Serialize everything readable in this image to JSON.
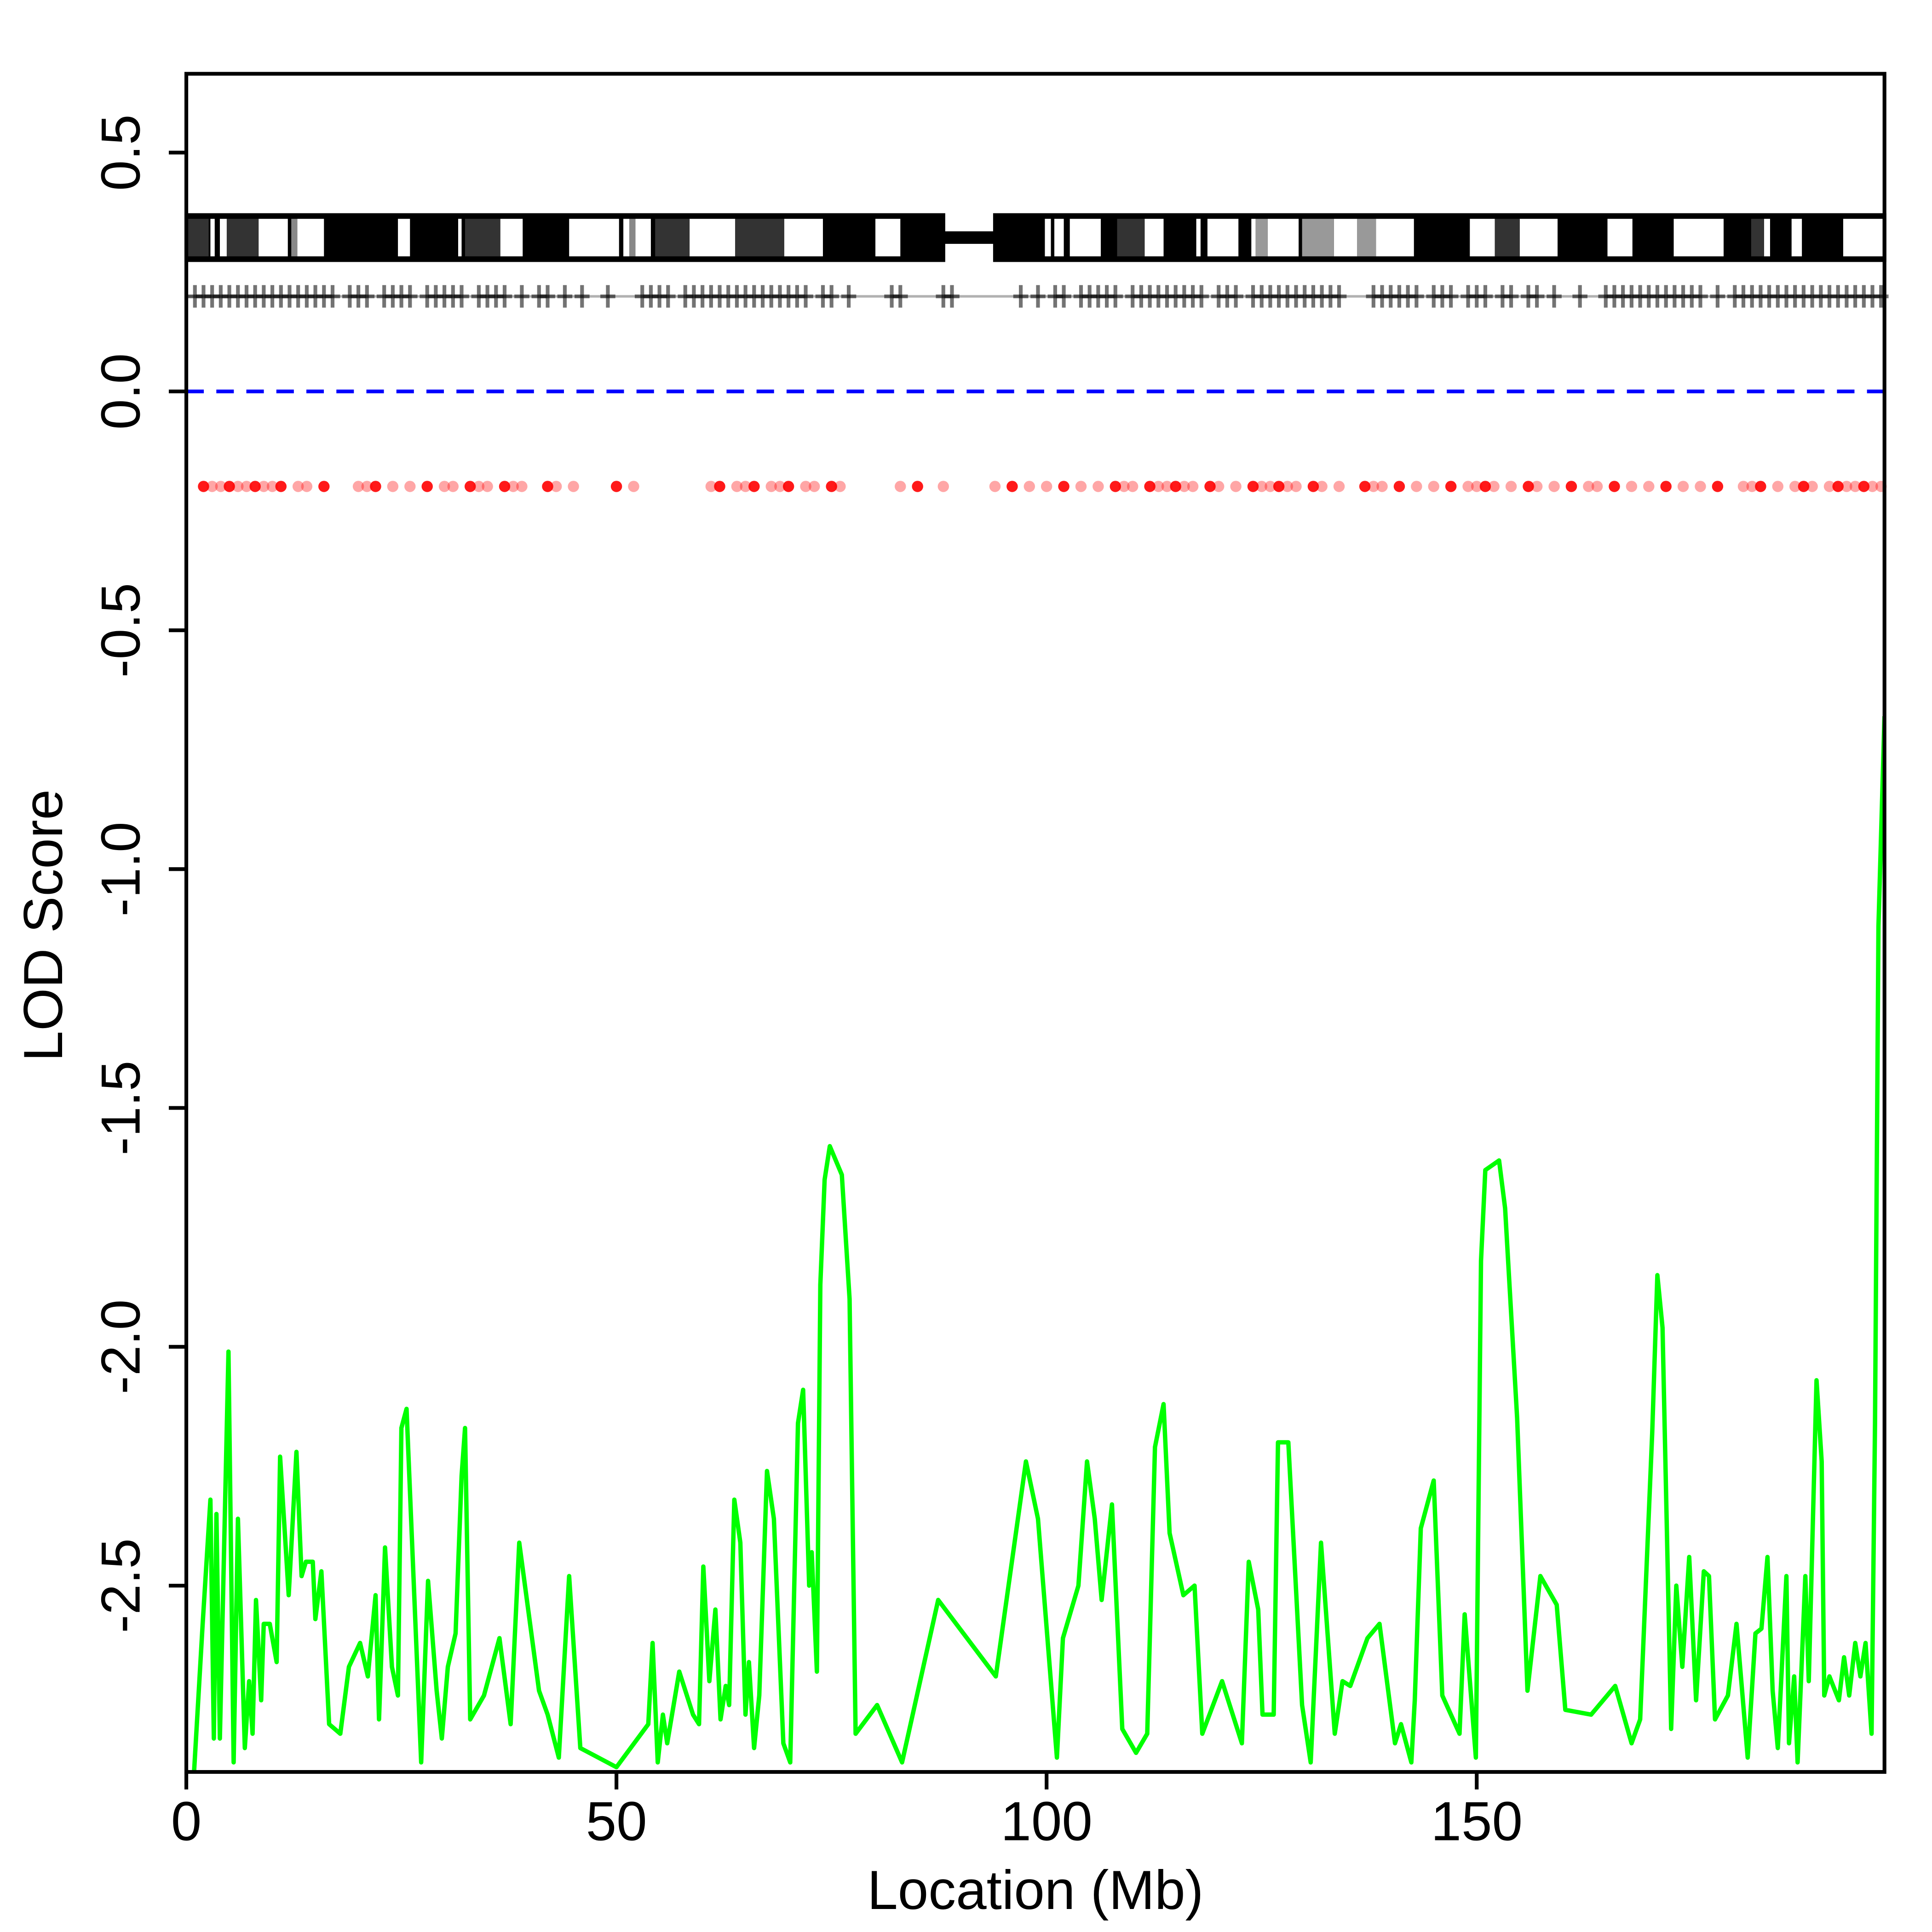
{
  "chart_data": {
    "type": "line",
    "xlabel": "Location (Mb)",
    "ylabel": "LOD Score",
    "xlim": [
      0,
      197.4
    ],
    "ylim": [
      -2.89,
      0.665
    ],
    "xticks": [
      0,
      50,
      100,
      150
    ],
    "yticks": [
      -2.5,
      {
        "value": -2.0,
        "label": "-2.0"
      },
      -1.5,
      {
        "value": -1.0,
        "label": "-1.0"
      },
      -0.5,
      {
        "value": 0.0,
        "label": "0.0"
      },
      0.5
    ],
    "color": "#00ff00",
    "hline": {
      "value": 0,
      "color": "#0000ff"
    },
    "x": [
      0.9,
      1.9,
      2.8,
      3.2,
      3.5,
      3.9,
      4.9,
      5.5,
      6.0,
      6.8,
      7.3,
      7.7,
      8.1,
      8.7,
      9.0,
      9.7,
      10.5,
      10.9,
      11.9,
      12.8,
      13.4,
      13.9,
      14.7,
      15.0,
      15.7,
      16.6,
      17.9,
      18.9,
      20.2,
      21.1,
      22.0,
      22.4,
      23.1,
      23.9,
      24.6,
      25.0,
      25.6,
      27.3,
      28.1,
      29.1,
      29.7,
      30.4,
      31.3,
      32.0,
      32.4,
      33.0,
      34.6,
      36.4,
      37.7,
      38.7,
      41.0,
      42.0,
      43.3,
      44.5,
      45.8,
      50.0,
      53.7,
      54.2,
      54.8,
      55.4,
      55.9,
      57.3,
      58.9,
      59.6,
      60.1,
      60.8,
      61.5,
      62.1,
      62.7,
      63.1,
      63.7,
      64.4,
      65.0,
      65.4,
      66.0,
      66.6,
      67.5,
      68.3,
      69.4,
      70.2,
      71.1,
      71.7,
      72.4,
      72.7,
      73.3,
      73.7,
      74.2,
      74.8,
      76.2,
      77.1,
      77.8,
      80.3,
      83.2,
      87.4,
      94.1,
      97.6,
      99.0,
      101.2,
      101.9,
      103.7,
      104.7,
      105.6,
      106.4,
      107.6,
      108.8,
      110.4,
      111.7,
      112.6,
      113.6,
      114.3,
      115.9,
      117.2,
      118.1,
      120.4,
      122.7,
      123.5,
      124.6,
      125.1,
      126.4,
      126.9,
      128.1,
      129.7,
      130.7,
      131.9,
      133.5,
      134.4,
      135.3,
      137.3,
      138.7,
      140.5,
      141.2,
      142.4,
      142.8,
      143.5,
      145.0,
      146.0,
      148.0,
      148.6,
      149.9,
      150.5,
      151.0,
      152.6,
      153.3,
      154.7,
      155.9,
      157.4,
      159.3,
      160.3,
      163.3,
      166.1,
      168.0,
      169.0,
      170.4,
      171.0,
      171.6,
      172.6,
      173.2,
      173.9,
      174.7,
      175.5,
      176.4,
      177.0,
      177.7,
      179.2,
      180.2,
      181.5,
      182.4,
      183.1,
      183.8,
      184.4,
      185.0,
      186.0,
      186.3,
      186.9,
      187.3,
      188.2,
      188.6,
      189.5,
      190.1,
      190.4,
      191.0,
      192.1,
      192.7,
      193.3,
      194.0,
      194.6,
      195.2,
      195.9,
      196.3,
      196.7,
      197.4
    ],
    "values": [
      -2.89,
      -2.58,
      -2.32,
      -2.82,
      -2.35,
      -2.82,
      -2.01,
      -2.87,
      -2.36,
      -2.84,
      -2.7,
      -2.81,
      -2.53,
      -2.74,
      -2.58,
      -2.58,
      -2.66,
      -2.23,
      -2.52,
      -2.22,
      -2.48,
      -2.45,
      -2.45,
      -2.57,
      -2.47,
      -2.79,
      -2.81,
      -2.67,
      -2.62,
      -2.69,
      -2.52,
      -2.78,
      -2.42,
      -2.67,
      -2.73,
      -2.17,
      -2.13,
      -2.87,
      -2.49,
      -2.72,
      -2.82,
      -2.67,
      -2.6,
      -2.27,
      -2.17,
      -2.78,
      -2.73,
      -2.61,
      -2.79,
      -2.41,
      -2.72,
      -2.77,
      -2.86,
      -2.48,
      -2.84,
      -2.88,
      -2.79,
      -2.62,
      -2.87,
      -2.77,
      -2.83,
      -2.68,
      -2.77,
      -2.79,
      -2.46,
      -2.7,
      -2.55,
      -2.78,
      -2.71,
      -2.75,
      -2.32,
      -2.41,
      -2.77,
      -2.66,
      -2.84,
      -2.73,
      -2.26,
      -2.36,
      -2.83,
      -2.87,
      -2.16,
      -2.09,
      -2.5,
      -2.43,
      -2.68,
      -1.87,
      -1.65,
      -1.58,
      -1.64,
      -1.9,
      -2.81,
      -2.75,
      -2.87,
      -2.53,
      -2.69,
      -2.24,
      -2.36,
      -2.86,
      -2.61,
      -2.5,
      -2.24,
      -2.36,
      -2.53,
      -2.33,
      -2.8,
      -2.85,
      -2.81,
      -2.21,
      -2.12,
      -2.39,
      -2.52,
      -2.5,
      -2.81,
      -2.7,
      -2.83,
      -2.45,
      -2.55,
      -2.77,
      -2.77,
      -2.2,
      -2.2,
      -2.75,
      -2.87,
      -2.41,
      -2.81,
      -2.7,
      -2.71,
      -2.61,
      -2.58,
      -2.83,
      -2.79,
      -2.87,
      -2.74,
      -2.38,
      -2.28,
      -2.73,
      -2.81,
      -2.56,
      -2.86,
      -1.82,
      -1.63,
      -1.61,
      -1.71,
      -2.15,
      -2.72,
      -2.48,
      -2.54,
      -2.76,
      -2.77,
      -2.71,
      -2.83,
      -2.78,
      -2.18,
      -1.85,
      -1.96,
      -2.8,
      -2.5,
      -2.67,
      -2.44,
      -2.74,
      -2.47,
      -2.48,
      -2.78,
      -2.73,
      -2.58,
      -2.86,
      -2.6,
      -2.59,
      -2.44,
      -2.72,
      -2.84,
      -2.48,
      -2.83,
      -2.69,
      -2.87,
      -2.48,
      -2.7,
      -2.07,
      -2.24,
      -2.73,
      -2.69,
      -2.74,
      -2.65,
      -2.73,
      -2.62,
      -2.69,
      -2.62,
      -2.81,
      -2.16,
      -1.12,
      -0.68
    ],
    "arms": [
      [
        0,
        88
      ],
      [
        94,
        197.4
      ]
    ],
    "bands": [
      {
        "start": 2.8,
        "end": 3.3,
        "color": "#ffffff"
      },
      {
        "start": 3.9,
        "end": 4.7,
        "color": "#ffffff"
      },
      {
        "start": 8.4,
        "end": 11.8,
        "color": "#ffffff"
      },
      {
        "start": 12.9,
        "end": 16.0,
        "color": "#ffffff"
      },
      {
        "start": 24.6,
        "end": 26.0,
        "color": "#ffffff"
      },
      {
        "start": 31.6,
        "end": 32.0,
        "color": "#ffffff"
      },
      {
        "start": 36.5,
        "end": 39.1,
        "color": "#ffffff"
      },
      {
        "start": 44.5,
        "end": 50.3,
        "color": "#ffffff"
      },
      {
        "start": 50.8,
        "end": 51.5,
        "color": "#ffffff"
      },
      {
        "start": 52.2,
        "end": 54.0,
        "color": "#ffffff"
      },
      {
        "start": 58.5,
        "end": 63.8,
        "color": "#ffffff"
      },
      {
        "start": 69.5,
        "end": 74.0,
        "color": "#ffffff"
      },
      {
        "start": 80.1,
        "end": 83.0,
        "color": "#ffffff"
      },
      {
        "start": 0,
        "end": 2.6,
        "color": "#333333"
      },
      {
        "start": 4.7,
        "end": 8.4,
        "color": "#333333"
      },
      {
        "start": 32.4,
        "end": 36.5,
        "color": "#333333"
      },
      {
        "start": 54.5,
        "end": 58.5,
        "color": "#333333"
      },
      {
        "start": 63.8,
        "end": 69.5,
        "color": "#333333"
      },
      {
        "start": 12.2,
        "end": 12.9,
        "color": "#888888"
      },
      {
        "start": 51.5,
        "end": 52.2,
        "color": "#888888"
      },
      {
        "start": 99.8,
        "end": 100.5,
        "color": "#ffffff"
      },
      {
        "start": 100.9,
        "end": 102.0,
        "color": "#ffffff"
      },
      {
        "start": 102.7,
        "end": 106.3,
        "color": "#ffffff"
      },
      {
        "start": 111.4,
        "end": 113.6,
        "color": "#ffffff"
      },
      {
        "start": 117.4,
        "end": 117.9,
        "color": "#ffffff"
      },
      {
        "start": 118.7,
        "end": 122.3,
        "color": "#ffffff"
      },
      {
        "start": 123.8,
        "end": 124.3,
        "color": "#ffffff"
      },
      {
        "start": 125.7,
        "end": 129.3,
        "color": "#ffffff"
      },
      {
        "start": 133.4,
        "end": 136.1,
        "color": "#ffffff"
      },
      {
        "start": 138.3,
        "end": 142.7,
        "color": "#ffffff"
      },
      {
        "start": 149.2,
        "end": 152.1,
        "color": "#ffffff"
      },
      {
        "start": 155.0,
        "end": 159.4,
        "color": "#ffffff"
      },
      {
        "start": 165.2,
        "end": 168.1,
        "color": "#ffffff"
      },
      {
        "start": 172.9,
        "end": 178.7,
        "color": "#ffffff"
      },
      {
        "start": 183.4,
        "end": 184.1,
        "color": "#ffffff"
      },
      {
        "start": 186.6,
        "end": 187.8,
        "color": "#ffffff"
      },
      {
        "start": 192.6,
        "end": 197.4,
        "color": "#ffffff"
      },
      {
        "start": 124.3,
        "end": 125.7,
        "color": "#999999"
      },
      {
        "start": 129.7,
        "end": 133.4,
        "color": "#999999"
      },
      {
        "start": 136.1,
        "end": 138.3,
        "color": "#999999"
      },
      {
        "start": 108.2,
        "end": 111.4,
        "color": "#333333"
      },
      {
        "start": 152.1,
        "end": 155.0,
        "color": "#333333"
      },
      {
        "start": 181.9,
        "end": 183.4,
        "color": "#333333"
      }
    ],
    "markers": [
      1,
      2,
      3,
      4,
      5,
      6,
      7,
      8,
      9,
      10,
      11,
      12,
      13,
      14,
      15,
      16,
      17,
      19,
      20,
      21,
      23,
      24,
      25,
      26,
      28,
      29,
      30,
      31,
      32,
      34,
      35,
      36,
      37,
      39,
      41,
      42,
      44,
      46,
      49,
      53,
      54,
      55,
      56,
      58,
      59,
      60,
      61,
      62,
      63,
      64,
      65,
      66,
      67,
      68,
      69,
      70,
      71,
      72,
      74,
      75,
      77,
      82,
      83,
      88,
      89,
      97,
      99,
      101,
      102,
      104,
      105,
      106,
      107,
      108,
      110,
      111,
      112,
      113,
      114,
      115,
      116,
      117,
      118,
      120,
      121,
      122,
      124,
      125,
      126,
      127,
      128,
      129,
      130,
      131,
      132,
      133,
      134,
      138,
      139,
      140,
      141,
      142,
      143,
      145,
      146,
      147,
      149,
      150,
      151,
      153,
      154,
      156,
      157,
      159,
      162,
      165,
      166,
      167,
      168,
      169,
      170,
      171,
      172,
      173,
      174,
      175,
      176,
      178,
      180,
      181,
      182,
      183,
      184,
      185,
      186,
      187,
      188,
      189,
      190,
      191,
      192,
      193,
      194,
      195,
      196,
      197
    ],
    "marker_color": "#000000",
    "dots": [
      2,
      3,
      4,
      5,
      6,
      7,
      8,
      9,
      10,
      11,
      13,
      14,
      16,
      20,
      21,
      22,
      24,
      26,
      28,
      30,
      31,
      33,
      34,
      35,
      37,
      38,
      39,
      42,
      43,
      45,
      50,
      52,
      61,
      62,
      64,
      65,
      66,
      68,
      69,
      70,
      72,
      73,
      75,
      76,
      83,
      85,
      88,
      94,
      96,
      98,
      100,
      102,
      104,
      106,
      108,
      109,
      110,
      112,
      113,
      114,
      115,
      116,
      117,
      119,
      120,
      122,
      124,
      125,
      126,
      127,
      128,
      129,
      131,
      132,
      134,
      137,
      138,
      139,
      141,
      143,
      145,
      147,
      149,
      150,
      151,
      152,
      154,
      156,
      157,
      159,
      161,
      163,
      164,
      166,
      168,
      170,
      172,
      174,
      176,
      178,
      181,
      182,
      183,
      185,
      187,
      188,
      189,
      191,
      192,
      193,
      194,
      195,
      196,
      197
    ],
    "dot_color": "#ff0000"
  }
}
